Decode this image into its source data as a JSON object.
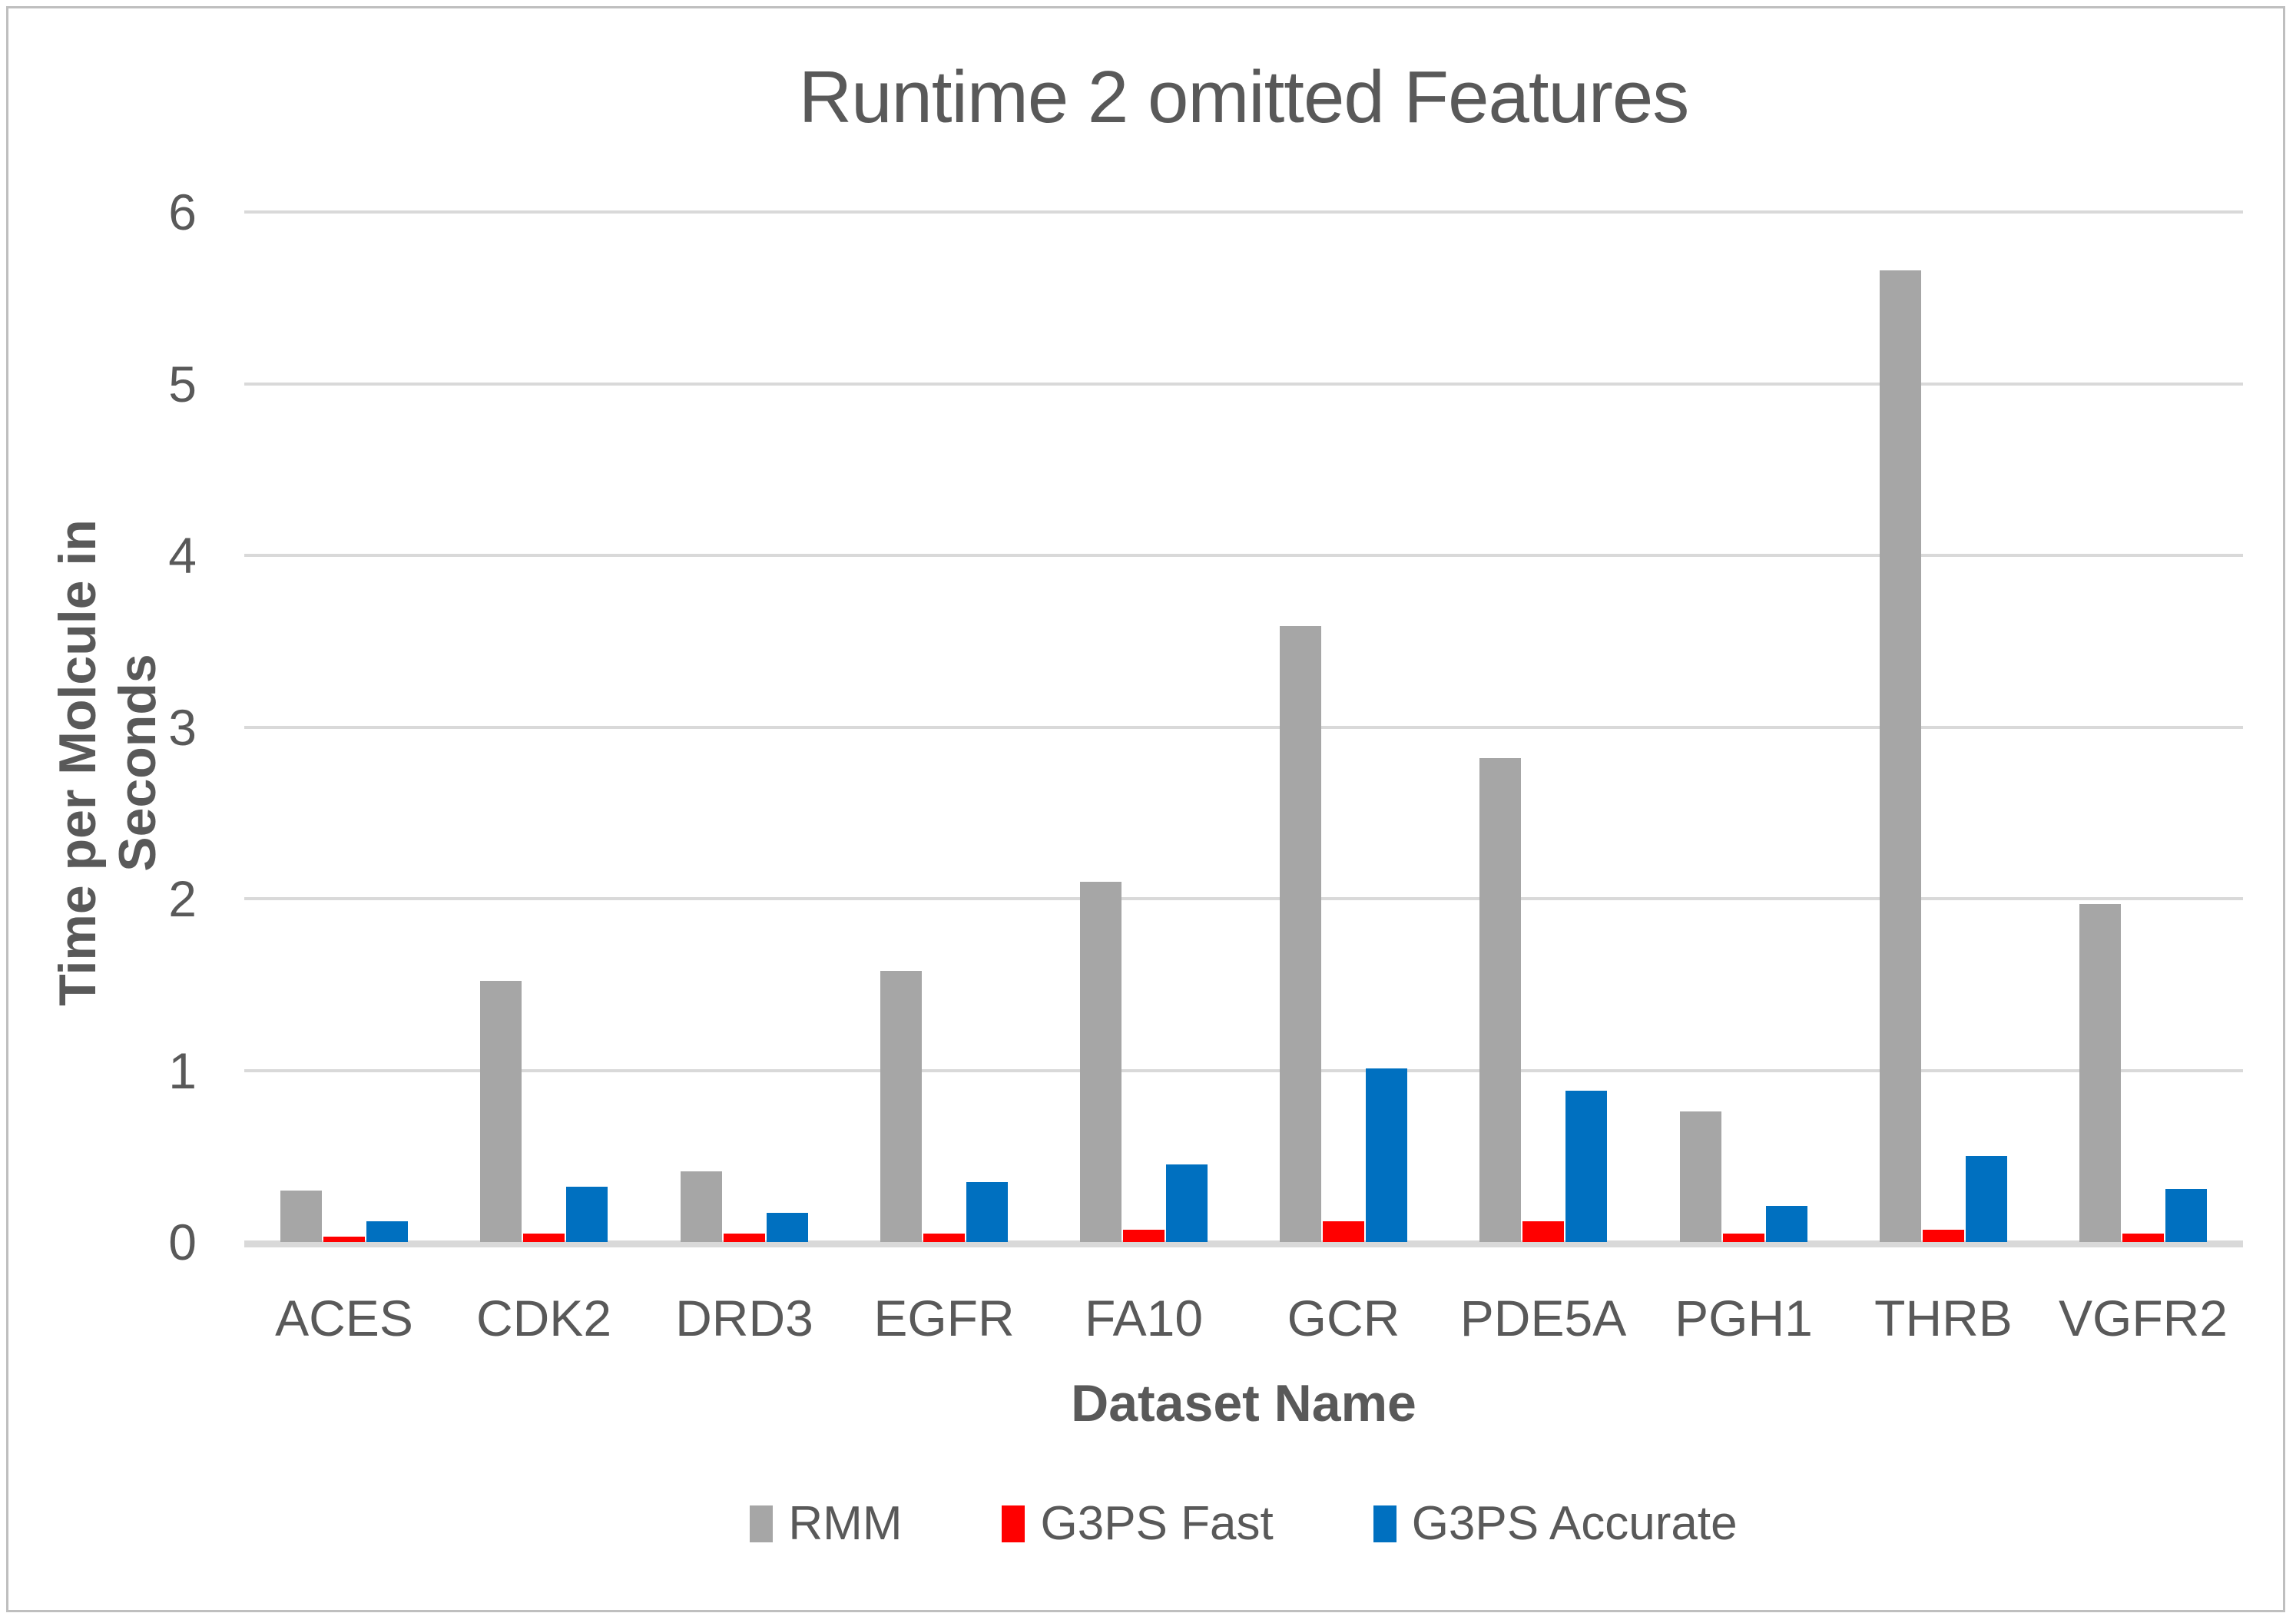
{
  "chart_data": {
    "type": "bar",
    "title": "Runtime 2 omitted Features",
    "xlabel": "Dataset Name",
    "ylabel": "Time per Molcule in Seconds",
    "categories": [
      "ACES",
      "CDK2",
      "DRD3",
      "EGFR",
      "FA10",
      "GCR",
      "PDE5A",
      "PGH1",
      "THRB",
      "VGFR2"
    ],
    "series": [
      {
        "name": "RMM",
        "color": "#a6a6a6",
        "values": [
          0.3,
          1.52,
          0.41,
          1.58,
          2.1,
          3.59,
          2.82,
          0.76,
          5.66,
          1.97
        ]
      },
      {
        "name": "G3PS Fast",
        "color": "#ff0000",
        "values": [
          0.03,
          0.05,
          0.05,
          0.05,
          0.07,
          0.12,
          0.12,
          0.05,
          0.07,
          0.05
        ]
      },
      {
        "name": "G3PS Accurate",
        "color": "#0070c0",
        "values": [
          0.12,
          0.32,
          0.17,
          0.35,
          0.45,
          1.01,
          0.88,
          0.21,
          0.5,
          0.31
        ]
      }
    ],
    "ylim": [
      0,
      6
    ],
    "yticks": [
      0,
      1,
      2,
      3,
      4,
      5,
      6
    ],
    "grid": true,
    "legend_position": "bottom"
  },
  "colors": {
    "gridline": "#d9d9d9",
    "axis_line": "#d9d9d9",
    "text": "#595959",
    "frame_border": "#bfbfbf",
    "background": "#ffffff"
  }
}
